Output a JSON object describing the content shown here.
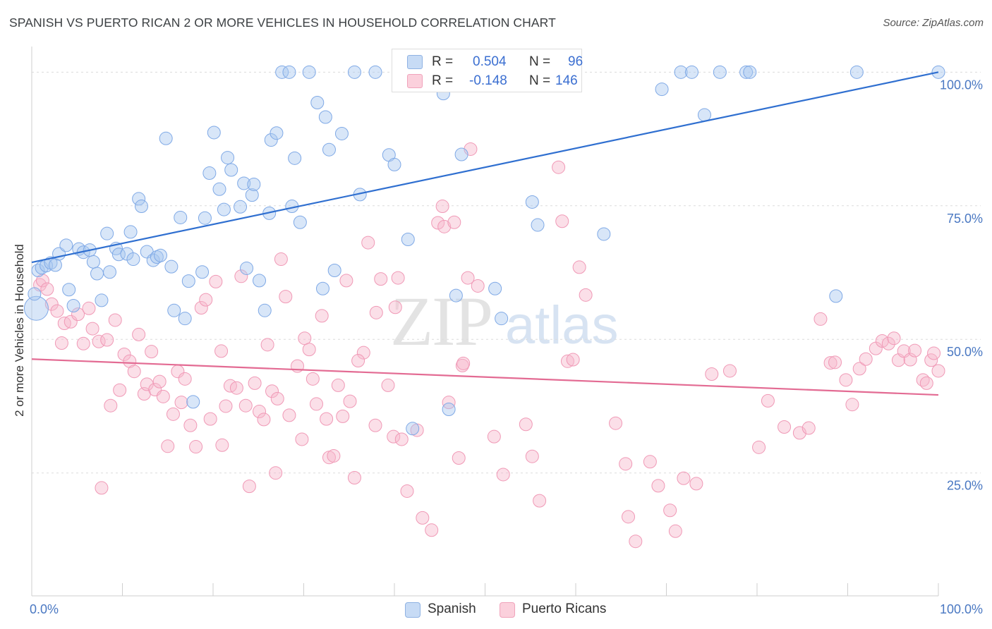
{
  "title": "SPANISH VS PUERTO RICAN 2 OR MORE VEHICLES IN HOUSEHOLD CORRELATION CHART",
  "source": "Source: ZipAtlas.com",
  "watermark": {
    "zip": "ZIP",
    "atlas": "atlas"
  },
  "legend": {
    "spanish": {
      "r_label": "R =",
      "r_value": "0.504",
      "n_label": "N =",
      "n_value": "96",
      "color": "#a9c8f0"
    },
    "puerto_rican": {
      "r_label": "R =",
      "r_value": "-0.148",
      "n_label": "N =",
      "n_value": "146",
      "color": "#f7b9cc"
    }
  },
  "bottom_legend": {
    "spanish": "Spanish",
    "puerto_rican": "Puerto Ricans"
  },
  "chart_data": {
    "type": "scatter",
    "ylabel": "2 or more Vehicles in Household",
    "xlabel": "",
    "x_tick_labels": [
      "0.0%",
      "100.0%"
    ],
    "y_tick_labels": [
      "25.0%",
      "50.0%",
      "75.0%",
      "100.0%"
    ],
    "xlim": [
      0,
      100
    ],
    "ylim": [
      2,
      104
    ],
    "grid": true,
    "colors": {
      "spanish": "#7fa9e6",
      "spanish_line": "#2f6fd0",
      "puerto_rican": "#f099b6",
      "puerto_rican_line": "#e36b93"
    },
    "series": [
      {
        "name": "Spanish",
        "trend": {
          "x0": 0,
          "y0": 64.4,
          "x1": 100,
          "y1": 100.0
        },
        "points": [
          [
            0.5,
            55.8
          ],
          [
            0.7,
            62.9
          ],
          [
            1.1,
            63.4
          ],
          [
            1.6,
            63.8
          ],
          [
            2.1,
            64.3
          ],
          [
            2.6,
            63.9
          ],
          [
            3.0,
            66.0
          ],
          [
            3.8,
            67.6
          ],
          [
            4.1,
            59.3
          ],
          [
            4.6,
            56.3
          ],
          [
            5.2,
            66.9
          ],
          [
            5.7,
            66.3
          ],
          [
            6.4,
            66.7
          ],
          [
            6.8,
            64.5
          ],
          [
            7.2,
            62.3
          ],
          [
            7.7,
            57.3
          ],
          [
            8.3,
            69.8
          ],
          [
            8.6,
            62.6
          ],
          [
            9.3,
            67.0
          ],
          [
            9.6,
            65.9
          ],
          [
            10.5,
            66.0
          ],
          [
            10.9,
            70.1
          ],
          [
            11.2,
            65.0
          ],
          [
            11.8,
            76.3
          ],
          [
            12.1,
            74.9
          ],
          [
            12.7,
            66.4
          ],
          [
            13.4,
            64.8
          ],
          [
            13.8,
            65.4
          ],
          [
            14.2,
            65.7
          ],
          [
            14.8,
            87.6
          ],
          [
            15.4,
            63.6
          ],
          [
            15.7,
            55.4
          ],
          [
            16.4,
            72.8
          ],
          [
            16.9,
            53.9
          ],
          [
            17.3,
            60.9
          ],
          [
            17.8,
            38.3
          ],
          [
            18.8,
            62.6
          ],
          [
            19.1,
            72.7
          ],
          [
            19.6,
            81.1
          ],
          [
            20.1,
            88.7
          ],
          [
            20.7,
            78.1
          ],
          [
            21.2,
            74.3
          ],
          [
            21.6,
            84.0
          ],
          [
            22.0,
            81.7
          ],
          [
            23.0,
            74.8
          ],
          [
            23.4,
            79.2
          ],
          [
            23.7,
            63.3
          ],
          [
            24.3,
            77.0
          ],
          [
            24.5,
            79.0
          ],
          [
            25.1,
            61.0
          ],
          [
            25.7,
            55.4
          ],
          [
            26.2,
            73.6
          ],
          [
            26.4,
            87.3
          ],
          [
            27.0,
            88.6
          ],
          [
            27.6,
            100.0
          ],
          [
            28.4,
            100.0
          ],
          [
            28.7,
            74.9
          ],
          [
            29.0,
            83.9
          ],
          [
            29.6,
            71.9
          ],
          [
            30.6,
            100.0
          ],
          [
            31.5,
            94.3
          ],
          [
            32.1,
            59.5
          ],
          [
            32.4,
            91.6
          ],
          [
            32.8,
            85.5
          ],
          [
            33.4,
            62.9
          ],
          [
            34.2,
            88.5
          ],
          [
            35.6,
            100.0
          ],
          [
            36.2,
            77.1
          ],
          [
            37.9,
            100.0
          ],
          [
            39.4,
            84.5
          ],
          [
            40.0,
            82.7
          ],
          [
            41.5,
            68.7
          ],
          [
            42.0,
            33.3
          ],
          [
            45.4,
            96.0
          ],
          [
            46.0,
            36.9
          ],
          [
            46.8,
            58.2
          ],
          [
            47.4,
            84.6
          ],
          [
            51.1,
            59.5
          ],
          [
            51.8,
            53.9
          ],
          [
            52.2,
            100.0
          ],
          [
            54.1,
            100.0
          ],
          [
            55.2,
            75.7
          ],
          [
            55.8,
            71.4
          ],
          [
            56.6,
            100.0
          ],
          [
            63.1,
            69.7
          ],
          [
            69.5,
            96.8
          ],
          [
            71.6,
            100.0
          ],
          [
            72.8,
            100.0
          ],
          [
            74.2,
            92.0
          ],
          [
            75.9,
            100.0
          ],
          [
            78.8,
            100.0
          ],
          [
            79.2,
            100.0
          ],
          [
            88.7,
            58.1
          ],
          [
            91.0,
            100.0
          ],
          [
            100.0,
            100.0
          ],
          [
            0.3,
            58.5
          ]
        ]
      },
      {
        "name": "Puerto Ricans",
        "trend": {
          "x0": 0,
          "y0": 46.3,
          "x1": 100,
          "y1": 39.6
        },
        "points": [
          [
            0.9,
            60.2
          ],
          [
            1.2,
            61.0
          ],
          [
            1.7,
            59.4
          ],
          [
            2.2,
            56.6
          ],
          [
            2.8,
            55.3
          ],
          [
            3.3,
            49.3
          ],
          [
            3.6,
            53.0
          ],
          [
            4.3,
            53.3
          ],
          [
            5.1,
            54.7
          ],
          [
            5.7,
            49.2
          ],
          [
            6.3,
            55.8
          ],
          [
            6.7,
            52.0
          ],
          [
            7.4,
            49.6
          ],
          [
            7.7,
            22.2
          ],
          [
            8.3,
            49.9
          ],
          [
            8.7,
            37.6
          ],
          [
            9.2,
            53.6
          ],
          [
            9.7,
            40.5
          ],
          [
            10.2,
            47.2
          ],
          [
            10.8,
            45.9
          ],
          [
            11.3,
            44.0
          ],
          [
            11.8,
            50.9
          ],
          [
            12.4,
            39.8
          ],
          [
            12.7,
            41.6
          ],
          [
            13.2,
            47.7
          ],
          [
            13.6,
            40.6
          ],
          [
            14.1,
            42.1
          ],
          [
            14.5,
            39.3
          ],
          [
            15.0,
            30.0
          ],
          [
            15.6,
            36.0
          ],
          [
            16.1,
            44.0
          ],
          [
            16.5,
            38.2
          ],
          [
            16.9,
            42.6
          ],
          [
            17.5,
            33.9
          ],
          [
            18.1,
            29.9
          ],
          [
            18.7,
            55.9
          ],
          [
            19.2,
            57.4
          ],
          [
            19.7,
            35.1
          ],
          [
            20.3,
            60.8
          ],
          [
            20.9,
            47.8
          ],
          [
            21.4,
            37.5
          ],
          [
            21.9,
            41.3
          ],
          [
            22.6,
            40.9
          ],
          [
            23.1,
            61.8
          ],
          [
            23.6,
            37.6
          ],
          [
            24.0,
            22.5
          ],
          [
            24.6,
            41.8
          ],
          [
            25.1,
            36.5
          ],
          [
            25.6,
            35.0
          ],
          [
            26.0,
            49.0
          ],
          [
            26.5,
            40.3
          ],
          [
            27.1,
            38.9
          ],
          [
            27.5,
            65.0
          ],
          [
            28.0,
            58.0
          ],
          [
            28.4,
            35.8
          ],
          [
            29.3,
            45.0
          ],
          [
            29.8,
            31.3
          ],
          [
            30.1,
            50.2
          ],
          [
            30.6,
            48.1
          ],
          [
            31.0,
            42.6
          ],
          [
            31.4,
            37.9
          ],
          [
            32.0,
            54.4
          ],
          [
            32.5,
            35.1
          ],
          [
            32.8,
            27.9
          ],
          [
            33.3,
            28.2
          ],
          [
            33.8,
            41.4
          ],
          [
            34.3,
            35.6
          ],
          [
            34.7,
            61.0
          ],
          [
            35.1,
            38.4
          ],
          [
            35.6,
            24.1
          ],
          [
            36.6,
            47.5
          ],
          [
            37.1,
            68.1
          ],
          [
            37.9,
            33.9
          ],
          [
            38.5,
            61.3
          ],
          [
            39.3,
            41.4
          ],
          [
            39.9,
            31.8
          ],
          [
            40.1,
            56.0
          ],
          [
            40.4,
            61.5
          ],
          [
            40.8,
            31.3
          ],
          [
            41.4,
            21.6
          ],
          [
            42.5,
            33.0
          ],
          [
            43.1,
            16.6
          ],
          [
            44.1,
            14.3
          ],
          [
            44.8,
            71.8
          ],
          [
            45.5,
            71.1
          ],
          [
            46.0,
            38.2
          ],
          [
            46.6,
            71.9
          ],
          [
            47.1,
            27.8
          ],
          [
            47.5,
            45.1
          ],
          [
            48.1,
            61.5
          ],
          [
            48.4,
            85.6
          ],
          [
            51.0,
            31.8
          ],
          [
            54.5,
            34.1
          ],
          [
            55.2,
            28.1
          ],
          [
            56.0,
            19.8
          ],
          [
            59.1,
            45.9
          ],
          [
            60.4,
            63.5
          ],
          [
            61.1,
            58.3
          ],
          [
            64.4,
            34.3
          ],
          [
            65.5,
            26.7
          ],
          [
            65.8,
            16.8
          ],
          [
            66.6,
            12.2
          ],
          [
            68.2,
            27.1
          ],
          [
            69.1,
            22.6
          ],
          [
            70.4,
            18.0
          ],
          [
            71.0,
            14.1
          ],
          [
            71.9,
            24.0
          ],
          [
            73.3,
            23.0
          ],
          [
            75.0,
            43.5
          ],
          [
            77.0,
            44.1
          ],
          [
            80.2,
            29.8
          ],
          [
            81.2,
            38.5
          ],
          [
            83.0,
            33.6
          ],
          [
            84.7,
            32.5
          ],
          [
            85.7,
            33.4
          ],
          [
            87.0,
            53.8
          ],
          [
            88.1,
            45.6
          ],
          [
            88.6,
            45.7
          ],
          [
            89.8,
            42.4
          ],
          [
            90.5,
            37.8
          ],
          [
            91.3,
            44.5
          ],
          [
            92.0,
            46.3
          ],
          [
            93.1,
            48.3
          ],
          [
            93.8,
            49.7
          ],
          [
            94.5,
            49.2
          ],
          [
            95.1,
            50.2
          ],
          [
            95.6,
            46.1
          ],
          [
            96.2,
            47.8
          ],
          [
            96.9,
            46.2
          ],
          [
            97.4,
            47.9
          ],
          [
            98.3,
            42.4
          ],
          [
            98.7,
            41.8
          ],
          [
            99.2,
            46.1
          ],
          [
            99.5,
            47.4
          ],
          [
            100.0,
            44.1
          ],
          [
            58.1,
            82.2
          ],
          [
            58.5,
            72.1
          ],
          [
            59.7,
            46.2
          ],
          [
            49.2,
            60.0
          ],
          [
            52.0,
            24.7
          ],
          [
            45.3,
            74.9
          ],
          [
            47.6,
            45.5
          ],
          [
            38.0,
            55.0
          ],
          [
            36.0,
            46.0
          ],
          [
            26.9,
            25.0
          ],
          [
            21.0,
            30.2
          ]
        ]
      }
    ]
  }
}
